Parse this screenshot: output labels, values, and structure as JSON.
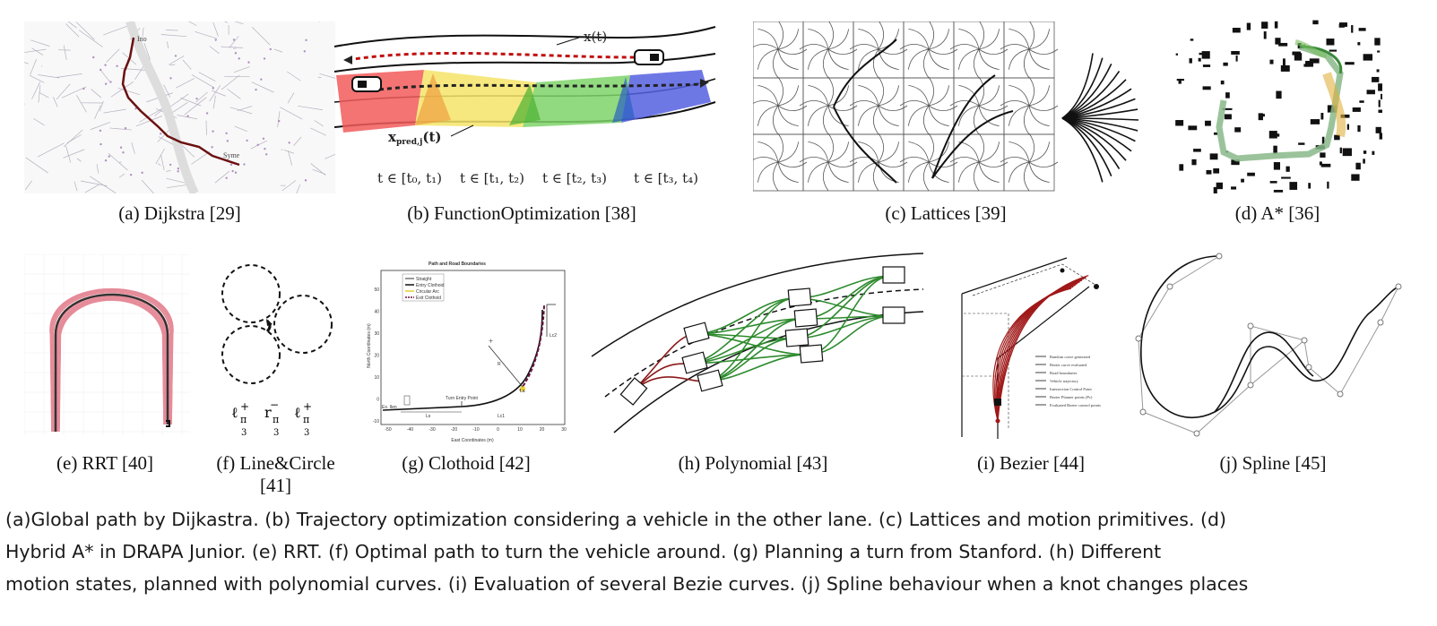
{
  "panels": [
    {
      "id": "a",
      "caption": "(a) Dijkstra [29]"
    },
    {
      "id": "b",
      "caption": "(b) FunctionOptimization [38]"
    },
    {
      "id": "c",
      "caption": "(c) Lattices [39]"
    },
    {
      "id": "d",
      "caption": "(d) A* [36]"
    },
    {
      "id": "e",
      "caption": "(e) RRT [40]"
    },
    {
      "id": "f",
      "caption_line1": "(f) Line&Circle",
      "caption_line2": "[41]"
    },
    {
      "id": "g",
      "caption": "(g) Clothoid [42]"
    },
    {
      "id": "h",
      "caption": "(h) Polynomial [43]"
    },
    {
      "id": "i",
      "caption": "(i) Bezier [44]"
    },
    {
      "id": "j",
      "caption": "(j) Spline [45]"
    }
  ],
  "panel_b_labels": {
    "x_t": "x(t)",
    "x_pred": "x",
    "x_pred_sub": "pred,j",
    "x_pred_tail": "(t)",
    "intervals": [
      "t ∈ [t₀, t₁)",
      "t ∈ [t₁, t₂)",
      "t ∈ [t₂, t₃)",
      "t ∈ [t₃, t₄)"
    ]
  },
  "panel_a_labels": {
    "start": "Ino",
    "end": "Syme"
  },
  "panel_f_labels": {
    "symbols": [
      "ℓ",
      "r",
      "ℓ"
    ],
    "signs": [
      "+",
      "−",
      "+"
    ],
    "sub": "π",
    "den": "3"
  },
  "panel_g_labels": {
    "title": "Path and Road Boundaries",
    "legend": [
      "Straight",
      "Entry Clothoid",
      "Circular Arc",
      "Exit Clothoid"
    ],
    "xlabel": "East Coordinates (m)",
    "ylabel": "North Coordinates (m)",
    "xticks": [
      "-50",
      "-40",
      "-30",
      "-20",
      "-10",
      "0",
      "10",
      "20",
      "30"
    ],
    "yticks": [
      "-10",
      "0",
      "10",
      "20",
      "30",
      "40",
      "50"
    ],
    "annotations": [
      "Turn Entry Point",
      "Lc1",
      "Lc2",
      "Ls",
      "La",
      "R",
      "Ex. Ilen"
    ]
  },
  "panel_i_legend": [
    "Random curve generated",
    "Bezier curve evaluated",
    "Road boundaries",
    "Vehicle trajectory",
    "Intersection Control Point",
    "Bezier Planner points (Pc)",
    "Evaluated Bezier control points"
  ],
  "caption_text": [
    "(a)Global path by Dijkastra. (b) Trajectory optimization considering a vehicle in the other lane. (c) Lattices and motion primitives. (d)",
    "Hybrid A* in DRAPA Junior. (e) RRT. (f) Optimal path to turn the vehicle around. (g) Planning a turn from Stanford. (h) Different",
    "motion states, planned with polynomial curves. (i) Evaluation of several Bezie curves. (j) Spline behaviour when a knot changes places"
  ],
  "colors": {
    "dijkstra_path": "#6b1010",
    "zone_red": "#f25a5a",
    "zone_yellow": "#f4e468",
    "zone_green": "#7fd36a",
    "zone_blue": "#5560e0",
    "poly_green": "#2e8b2e",
    "poly_red": "#8b1a1a",
    "rrt_pink": "#e07080"
  }
}
